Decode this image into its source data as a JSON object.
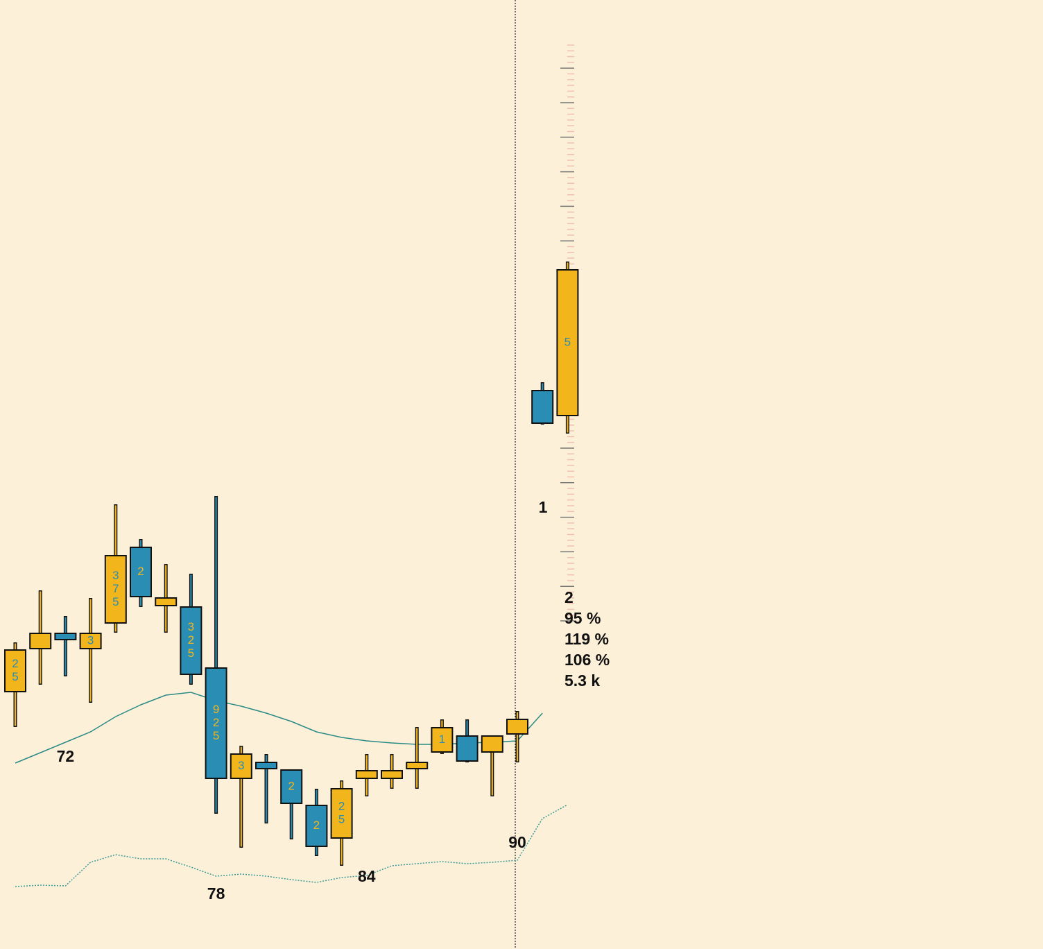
{
  "chart_data": {
    "type": "candlestick",
    "categories": [
      null,
      null,
      "72",
      null,
      null,
      null,
      null,
      null,
      "78",
      null,
      null,
      null,
      null,
      null,
      "84",
      null,
      null,
      null,
      null,
      null,
      "90",
      null,
      null
    ],
    "open": [
      371,
      433,
      455,
      433,
      470,
      579,
      495,
      493,
      405,
      246,
      269,
      258,
      207,
      160,
      246,
      246,
      260,
      284,
      307,
      284,
      310,
      805,
      769
    ],
    "high": [
      442,
      517,
      480,
      506,
      641,
      591,
      555,
      541,
      653,
      293,
      281,
      258,
      231,
      243,
      281,
      281,
      320,
      331,
      331,
      307,
      343,
      817,
      991
    ],
    "low": [
      320,
      381,
      393,
      355,
      456,
      493,
      456,
      381,
      195,
      146,
      181,
      158,
      134,
      120,
      220,
      231,
      231,
      281,
      269,
      220,
      269,
      756,
      743
    ],
    "close": [
      431,
      455,
      446,
      455,
      567,
      508,
      506,
      396,
      246,
      281,
      260,
      210,
      148,
      231,
      257,
      257,
      269,
      319,
      271,
      307,
      331,
      758,
      979
    ],
    "body_labels": [
      [
        "2",
        "5"
      ],
      null,
      null,
      [
        "3"
      ],
      [
        "3",
        "7",
        "5"
      ],
      [
        "2"
      ],
      null,
      [
        "3",
        "2",
        "5"
      ],
      [
        "9",
        "2",
        "5"
      ],
      [
        "3"
      ],
      null,
      [
        "2"
      ],
      [
        "2"
      ],
      [
        "2",
        "5"
      ],
      null,
      null,
      null,
      [
        "1"
      ],
      null,
      null,
      null,
      null,
      [
        "5"
      ]
    ],
    "up_color": "#f2b61c",
    "down_color": "#2a8db3",
    "series": [
      {
        "color": "#2a8a86",
        "style": "solid",
        "values": [
          268,
          283,
          298,
          313,
          335,
          352,
          366,
          370,
          358,
          350,
          340,
          328,
          313,
          305,
          300,
          297,
          295,
          295,
          297,
          298,
          300,
          340,
          null
        ]
      },
      {
        "color": "#3a9a96",
        "style": "dotted",
        "values": [
          90,
          92,
          91,
          125,
          136,
          130,
          130,
          118,
          105,
          108,
          105,
          100,
          96,
          103,
          106,
          120,
          123,
          126,
          123,
          125,
          128,
          188,
          208
        ]
      }
    ],
    "ylim": [
      0,
      1368
    ],
    "annotations": {
      "top": "1",
      "stats": [
        "2",
        "95 %",
        "119 %",
        "106 %",
        "5.3 k"
      ]
    }
  }
}
